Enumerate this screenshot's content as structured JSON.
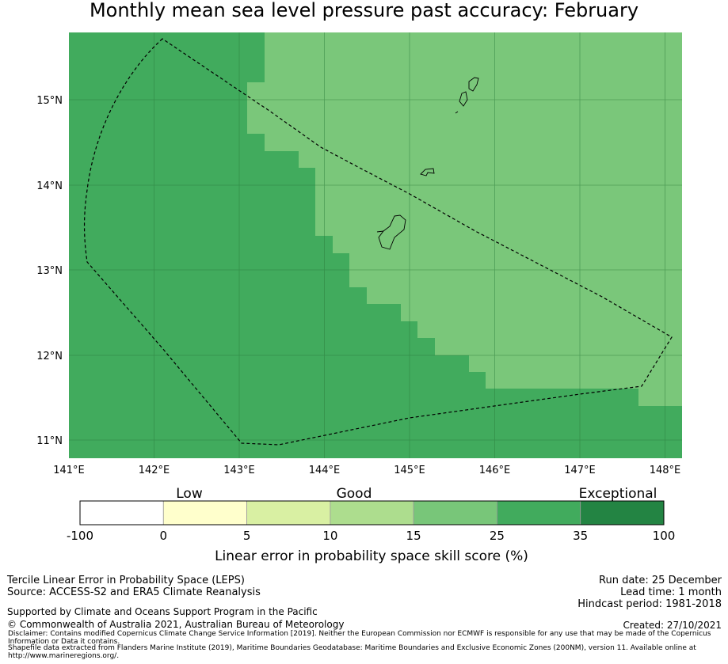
{
  "title": "Monthly mean sea level pressure past accuracy: February",
  "map": {
    "lon_labels": [
      "141°E",
      "142°E",
      "143°E",
      "144°E",
      "145°E",
      "146°E",
      "147°E",
      "148°E"
    ],
    "lat_labels": [
      "15°N",
      "14°N",
      "13°N",
      "12°N",
      "11°N"
    ],
    "lon_values": [
      141,
      142,
      143,
      144,
      145,
      146,
      147,
      148
    ],
    "lat_values": [
      15,
      14,
      13,
      12,
      11
    ],
    "lon_range": [
      141.0,
      148.2
    ],
    "lat_range": [
      10.8,
      15.8
    ],
    "colors": {
      "good_upper": "#7ac77a",
      "good_mid": "#41ab5d",
      "gridline": "#2a7a3a",
      "boundary": "#000000"
    }
  },
  "legend": {
    "category_labels": [
      "Low",
      "Good",
      "Exceptional"
    ],
    "tick_labels": [
      "-100",
      "0",
      "5",
      "10",
      "15",
      "25",
      "35",
      "100"
    ],
    "segment_colors": [
      "#ffffff",
      "#ffffcc",
      "#d9f0a3",
      "#addd8e",
      "#78c679",
      "#41ab5d",
      "#238443"
    ],
    "title": "Linear error in probability space skill score (%)"
  },
  "info": {
    "left_line1": "Tercile Linear Error in Probability Space (LEPS)",
    "left_line2": "Source: ACCESS-S2 and ERA5 Climate Reanalysis",
    "supported": "Supported by Climate and Oceans Support Program in the Pacific",
    "copyright": "© Commonwealth of Australia 2021, Australian Bureau of Meteorology",
    "run_date": "Run date: 25 December",
    "lead_time": "Lead time: 1 month",
    "hindcast": "Hindcast period: 1981-2018",
    "created": "Created: 27/10/2021",
    "disclaimer": "Disclaimer: Contains modified Copernicus Climate Change Service Information [2019]. Neither the European Commission nor ECMWF is responsible for any use that may be made of the Copernicus Information or Data it contains.",
    "shapefile": "Shapefile data extracted from Flanders Marine Institute (2019), Maritime Boundaries Geodatabase: Maritime Boundaries and Exclusive Economic Zones (200NM), version 11. Available online at http://www.marineregions.org/."
  }
}
